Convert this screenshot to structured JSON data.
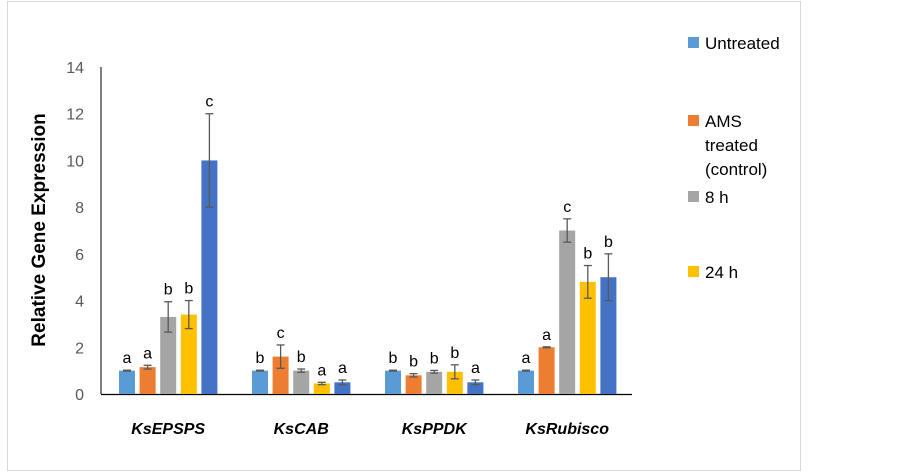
{
  "chart_data": {
    "type": "bar",
    "title": "",
    "xlabel": "",
    "ylabel": "Relative Gene Expression",
    "ylim": [
      0,
      14
    ],
    "yticks": [
      0,
      2,
      4,
      6,
      8,
      10,
      12,
      14
    ],
    "grid": false,
    "legend_position": "right",
    "categories": [
      "KsEPSPS",
      "KsCAB",
      "KsPPDK",
      "KsRubisco"
    ],
    "series": [
      {
        "name": "Untreated",
        "color": "#5B9BD5",
        "values": [
          1,
          1,
          1,
          1
        ],
        "errors": [
          0.02,
          0.02,
          0.02,
          0.02
        ],
        "letters": [
          "a",
          "b",
          "b",
          "a"
        ]
      },
      {
        "name": "AMS treated (control)",
        "legend_lines": [
          "AMS",
          "treated",
          "(control)"
        ],
        "color": "#ED7D31",
        "values": [
          1.15,
          1.6,
          0.8,
          2.0
        ],
        "errors": [
          0.08,
          0.5,
          0.07,
          0.02
        ],
        "letters": [
          "a",
          "c",
          "b",
          "a"
        ]
      },
      {
        "name": "8 h",
        "color": "#A5A5A5",
        "values": [
          3.3,
          1.0,
          0.95,
          7.0
        ],
        "errors": [
          0.65,
          0.07,
          0.06,
          0.5
        ],
        "letters": [
          "b",
          "b",
          "b",
          "c"
        ]
      },
      {
        "name": "24 h",
        "color": "#FFC000",
        "values": [
          3.4,
          0.45,
          0.95,
          4.8
        ],
        "errors": [
          0.6,
          0.05,
          0.3,
          0.7
        ],
        "letters": [
          "b",
          "a",
          "b",
          "b"
        ]
      },
      {
        "name": "",
        "color": "#4472C4",
        "values": [
          10.0,
          0.5,
          0.5,
          5.0
        ],
        "errors": [
          2.0,
          0.1,
          0.1,
          1.0
        ],
        "letters": [
          "c",
          "a",
          "a",
          "b"
        ]
      }
    ]
  }
}
